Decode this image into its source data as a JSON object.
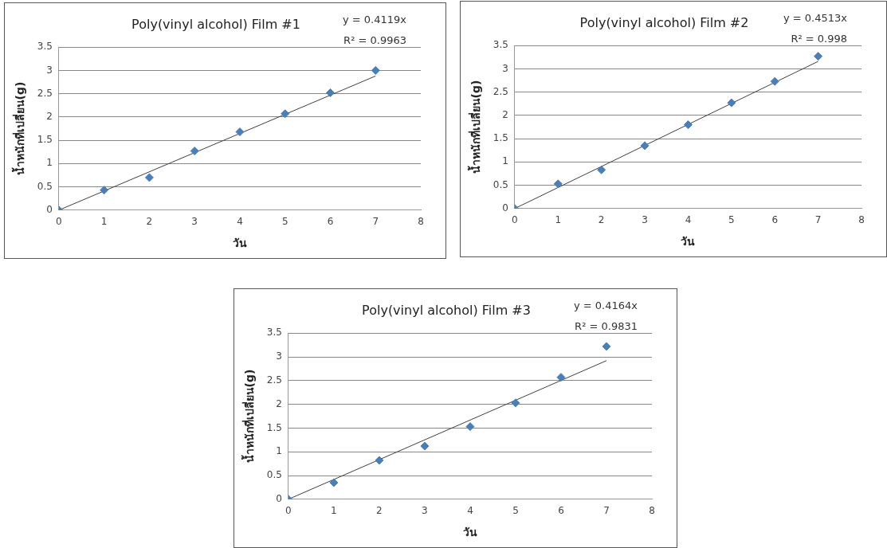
{
  "chart_data": [
    {
      "type": "scatter",
      "title": "Poly(vinyl alcohol) Film #1",
      "xlabel": "วัน",
      "ylabel": "น้ำหนักที่เปลี่ยน(g)",
      "annotations": [
        "y = 0.4119x",
        "R² = 0.9963"
      ],
      "x": [
        0,
        1,
        2,
        3,
        4,
        5,
        6,
        7
      ],
      "xlim": [
        0,
        8
      ],
      "xticks": [
        0,
        1,
        2,
        3,
        4,
        5,
        6,
        7,
        8
      ],
      "ylim": [
        0,
        3.5
      ],
      "yticks": [
        0,
        0.5,
        1,
        1.5,
        2,
        2.5,
        3,
        3.5
      ],
      "grid": "y",
      "series": [
        {
          "color": "#4a7ebb",
          "marker": "diamond",
          "values": [
            0,
            0.43,
            0.7,
            1.27,
            1.68,
            2.07,
            2.52,
            3.0
          ]
        },
        {
          "type": "line",
          "marker": "none",
          "color": "#404040",
          "values": [
            0,
            null,
            null,
            null,
            null,
            null,
            null,
            2.88
          ]
        }
      ]
    },
    {
      "type": "scatter",
      "title": "Poly(vinyl alcohol) Film #2",
      "xlabel": "วัน",
      "ylabel": "น้ำหนักที่เปลี่ยน(g)",
      "annotations": [
        "y = 0.4513x",
        "R² = 0.998"
      ],
      "x": [
        0,
        1,
        2,
        3,
        4,
        5,
        6,
        7
      ],
      "xlim": [
        0,
        8
      ],
      "xticks": [
        0,
        1,
        2,
        3,
        4,
        5,
        6,
        7,
        8
      ],
      "ylim": [
        0,
        3.5
      ],
      "yticks": [
        0,
        0.5,
        1,
        1.5,
        2,
        2.5,
        3,
        3.5
      ],
      "grid": "y",
      "series": [
        {
          "color": "#4a7ebb",
          "marker": "diamond",
          "values": [
            0,
            0.53,
            0.83,
            1.35,
            1.8,
            2.27,
            2.73,
            3.27
          ]
        },
        {
          "type": "line",
          "marker": "none",
          "color": "#404040",
          "values": [
            0,
            null,
            null,
            null,
            null,
            null,
            null,
            3.16
          ]
        }
      ]
    },
    {
      "type": "scatter",
      "title": "Poly(vinyl alcohol) Film #3",
      "xlabel": "วัน",
      "ylabel": "น้ำหนักที่เปลี่ยน(g)",
      "annotations": [
        "y = 0.4164x",
        "R² = 0.9831"
      ],
      "x": [
        0,
        1,
        2,
        3,
        4,
        5,
        6,
        7
      ],
      "xlim": [
        0,
        8
      ],
      "xticks": [
        0,
        1,
        2,
        3,
        4,
        5,
        6,
        7,
        8
      ],
      "ylim": [
        0,
        3.5
      ],
      "yticks": [
        0,
        0.5,
        1,
        1.5,
        2,
        2.5,
        3,
        3.5
      ],
      "grid": "y",
      "series": [
        {
          "color": "#4a7ebb",
          "marker": "diamond",
          "values": [
            0,
            0.35,
            0.82,
            1.12,
            1.53,
            2.03,
            2.57,
            3.22
          ]
        },
        {
          "type": "line",
          "marker": "none",
          "color": "#404040",
          "values": [
            0,
            null,
            null,
            null,
            null,
            null,
            null,
            2.92
          ]
        }
      ]
    }
  ]
}
